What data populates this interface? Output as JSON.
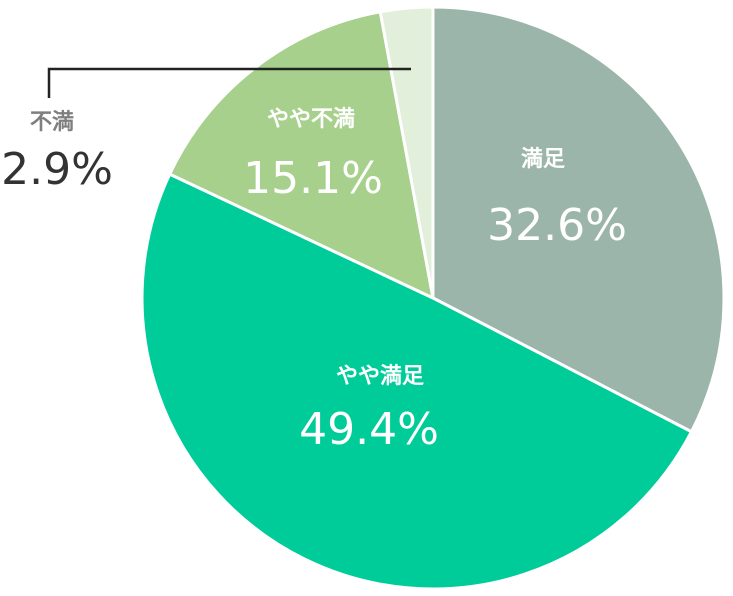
{
  "chart_data": {
    "type": "pie",
    "title": "",
    "slices": [
      {
        "label": "満足",
        "value": 32.6,
        "display": "32.6%",
        "color": "#9bb5aa"
      },
      {
        "label": "やや満足",
        "value": 49.4,
        "display": "49.4%",
        "color": "#00cc99"
      },
      {
        "label": "やや不満",
        "value": 15.1,
        "display": "15.1%",
        "color": "#a8d08d"
      },
      {
        "label": "不満",
        "value": 2.9,
        "display": "2.9%",
        "color": "#e2efda"
      }
    ],
    "start_angle": "12 o'clock",
    "direction": "clockwise",
    "label_colors": {
      "inside": "#ffffff",
      "outside_name": "#7f7f7f",
      "outside_value": "#333333"
    }
  }
}
